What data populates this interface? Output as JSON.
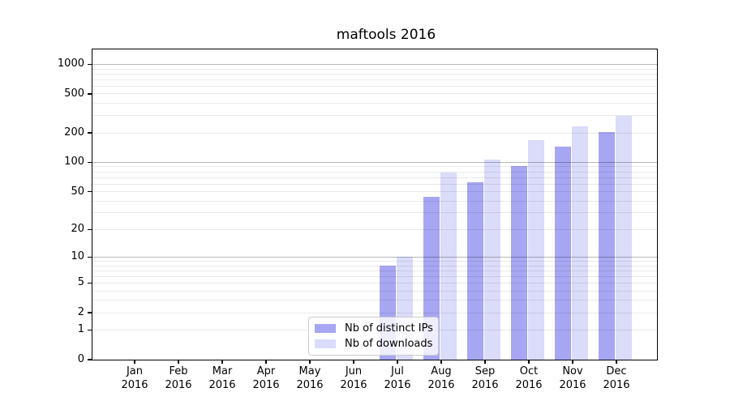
{
  "chart_data": {
    "type": "bar",
    "title": "maftools 2016",
    "xlabel": "",
    "ylabel": "",
    "year": "2016",
    "categories": [
      "Jan",
      "Feb",
      "Mar",
      "Apr",
      "May",
      "Jun",
      "Jul",
      "Aug",
      "Sep",
      "Oct",
      "Nov",
      "Dec"
    ],
    "series": [
      {
        "name": "Nb of distinct IPs",
        "color": "#a6a6f2",
        "values": [
          0,
          0,
          0,
          0,
          0,
          0,
          8,
          44,
          63,
          92,
          146,
          204
        ]
      },
      {
        "name": "Nb of downloads",
        "color": "#dbdbfa",
        "values": [
          0,
          0,
          0,
          0,
          0,
          0,
          10,
          78,
          106,
          170,
          235,
          299
        ]
      }
    ],
    "yscale": "log1p",
    "ylim": [
      0,
      1420
    ],
    "y_ticks": [
      0,
      1,
      2,
      5,
      10,
      20,
      50,
      100,
      200,
      500,
      1000
    ],
    "grid_major": [
      10,
      100,
      1000
    ],
    "grid_minor": [
      1,
      2,
      3,
      4,
      5,
      6,
      7,
      8,
      9,
      20,
      30,
      40,
      50,
      60,
      70,
      80,
      90,
      200,
      300,
      400,
      500,
      600,
      700,
      800,
      900
    ],
    "grid_on": true,
    "legend_position": "lower-center-inside",
    "frame": "black"
  }
}
